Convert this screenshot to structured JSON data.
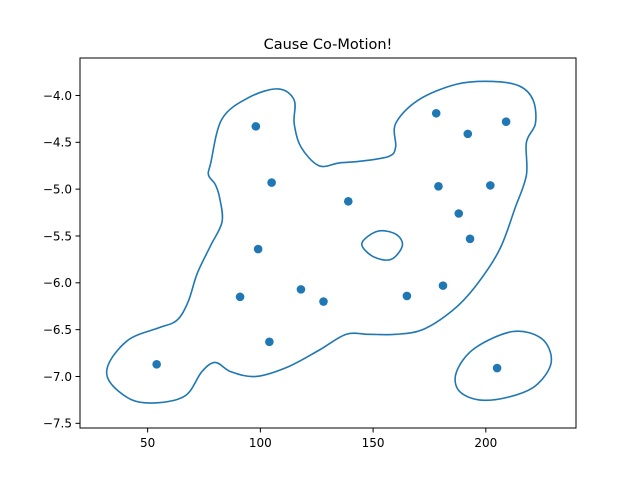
{
  "chart_data": {
    "type": "scatter",
    "title": "Cause Co-Motion!",
    "xlabel": "",
    "ylabel": "",
    "xlim": [
      20,
      240
    ],
    "ylim": [
      -7.55,
      -3.6
    ],
    "xticks": [
      50,
      100,
      150,
      200
    ],
    "yticks": [
      -4.0,
      -4.5,
      -5.0,
      -5.5,
      -6.0,
      -6.5,
      -7.0,
      -7.5
    ],
    "xtick_labels": [
      "50",
      "100",
      "150",
      "200"
    ],
    "ytick_labels": [
      "−4.0",
      "−4.5",
      "−5.0",
      "−5.5",
      "−6.0",
      "−6.5",
      "−7.0",
      "−7.5"
    ],
    "grid": false,
    "color": "#1f77b4",
    "points": [
      {
        "x": 98,
        "y": -4.33
      },
      {
        "x": 105,
        "y": -4.93
      },
      {
        "x": 99,
        "y": -5.64
      },
      {
        "x": 91,
        "y": -6.15
      },
      {
        "x": 118,
        "y": -6.07
      },
      {
        "x": 128,
        "y": -6.2
      },
      {
        "x": 104,
        "y": -6.63
      },
      {
        "x": 54,
        "y": -6.87
      },
      {
        "x": 139,
        "y": -5.13
      },
      {
        "x": 165,
        "y": -6.14
      },
      {
        "x": 181,
        "y": -6.03
      },
      {
        "x": 178,
        "y": -4.19
      },
      {
        "x": 192,
        "y": -4.41
      },
      {
        "x": 209,
        "y": -4.28
      },
      {
        "x": 179,
        "y": -4.97
      },
      {
        "x": 202,
        "y": -4.96
      },
      {
        "x": 188,
        "y": -5.26
      },
      {
        "x": 193,
        "y": -5.53
      },
      {
        "x": 205,
        "y": -6.91
      }
    ],
    "contours": [
      {
        "name": "main-region",
        "points": [
          [
            78,
            -4.72
          ],
          [
            83,
            -4.25
          ],
          [
            95,
            -4.02
          ],
          [
            108,
            -3.93
          ],
          [
            115,
            -4.05
          ],
          [
            115,
            -4.3
          ],
          [
            118,
            -4.55
          ],
          [
            126,
            -4.75
          ],
          [
            135,
            -4.72
          ],
          [
            145,
            -4.7
          ],
          [
            157,
            -4.65
          ],
          [
            160,
            -4.55
          ],
          [
            160,
            -4.3
          ],
          [
            170,
            -4.05
          ],
          [
            187,
            -3.88
          ],
          [
            203,
            -3.85
          ],
          [
            215,
            -3.9
          ],
          [
            221,
            -4.05
          ],
          [
            222,
            -4.3
          ],
          [
            218,
            -4.5
          ],
          [
            218,
            -4.85
          ],
          [
            213,
            -5.2
          ],
          [
            206,
            -5.65
          ],
          [
            195,
            -6.05
          ],
          [
            185,
            -6.3
          ],
          [
            172,
            -6.5
          ],
          [
            160,
            -6.55
          ],
          [
            148,
            -6.55
          ],
          [
            138,
            -6.55
          ],
          [
            126,
            -6.72
          ],
          [
            112,
            -6.9
          ],
          [
            98,
            -7.0
          ],
          [
            87,
            -6.95
          ],
          [
            80,
            -6.85
          ],
          [
            74,
            -6.95
          ],
          [
            67,
            -7.2
          ],
          [
            55,
            -7.28
          ],
          [
            43,
            -7.25
          ],
          [
            33,
            -7.05
          ],
          [
            33,
            -6.85
          ],
          [
            42,
            -6.6
          ],
          [
            55,
            -6.48
          ],
          [
            63,
            -6.4
          ],
          [
            68,
            -6.2
          ],
          [
            72,
            -5.9
          ],
          [
            78,
            -5.6
          ],
          [
            83,
            -5.35
          ],
          [
            82,
            -5.1
          ],
          [
            80,
            -4.95
          ],
          [
            77,
            -4.85
          ]
        ]
      },
      {
        "name": "hole-region",
        "points": [
          [
            145,
            -5.58
          ],
          [
            152,
            -5.45
          ],
          [
            160,
            -5.48
          ],
          [
            163,
            -5.6
          ],
          [
            158,
            -5.75
          ],
          [
            150,
            -5.72
          ]
        ]
      },
      {
        "name": "lower-right-region",
        "points": [
          [
            187,
            -6.95
          ],
          [
            195,
            -6.7
          ],
          [
            212,
            -6.52
          ],
          [
            225,
            -6.6
          ],
          [
            229,
            -6.85
          ],
          [
            222,
            -7.1
          ],
          [
            210,
            -7.22
          ],
          [
            197,
            -7.25
          ],
          [
            188,
            -7.15
          ]
        ]
      }
    ]
  }
}
